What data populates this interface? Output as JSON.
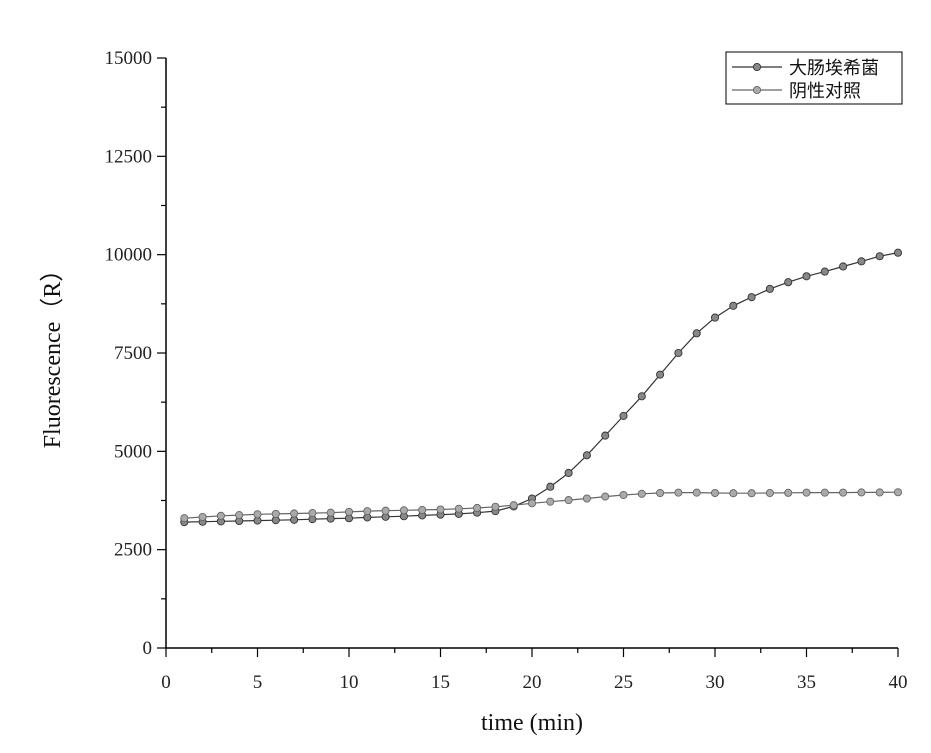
{
  "chart_data": {
    "type": "line",
    "xlabel": "time (min)",
    "ylabel": "Fluorescence（R）",
    "xlim": [
      0,
      40
    ],
    "ylim": [
      0,
      15000
    ],
    "xticks": [
      0,
      5,
      10,
      15,
      20,
      25,
      30,
      35,
      40
    ],
    "yticks": [
      0,
      2500,
      5000,
      7500,
      10000,
      12500,
      15000
    ],
    "grid": false,
    "legend_position": "top-right",
    "colors": {
      "line": "#333333",
      "marker": "#888888",
      "axis": "#000000"
    },
    "x": [
      1,
      2,
      3,
      4,
      5,
      6,
      7,
      8,
      9,
      10,
      11,
      12,
      13,
      14,
      15,
      16,
      17,
      18,
      19,
      20,
      21,
      22,
      23,
      24,
      25,
      26,
      27,
      28,
      29,
      30,
      31,
      32,
      33,
      34,
      35,
      36,
      37,
      38,
      39,
      40
    ],
    "series": [
      {
        "name": "大肠埃希菌",
        "values": [
          3200,
          3210,
          3220,
          3230,
          3240,
          3250,
          3260,
          3275,
          3290,
          3300,
          3320,
          3335,
          3350,
          3370,
          3390,
          3410,
          3440,
          3480,
          3600,
          3800,
          4100,
          4450,
          4900,
          5400,
          5900,
          6400,
          6950,
          7500,
          8000,
          8400,
          8700,
          8920,
          9130,
          9300,
          9450,
          9570,
          9700,
          9830,
          9960,
          10050
        ]
      },
      {
        "name": "阴性对照",
        "values": [
          3300,
          3330,
          3360,
          3380,
          3400,
          3410,
          3420,
          3430,
          3440,
          3460,
          3480,
          3490,
          3500,
          3510,
          3520,
          3540,
          3560,
          3590,
          3630,
          3680,
          3720,
          3760,
          3800,
          3850,
          3890,
          3920,
          3940,
          3950,
          3950,
          3940,
          3935,
          3935,
          3940,
          3945,
          3950,
          3950,
          3950,
          3955,
          3955,
          3960
        ]
      }
    ]
  }
}
